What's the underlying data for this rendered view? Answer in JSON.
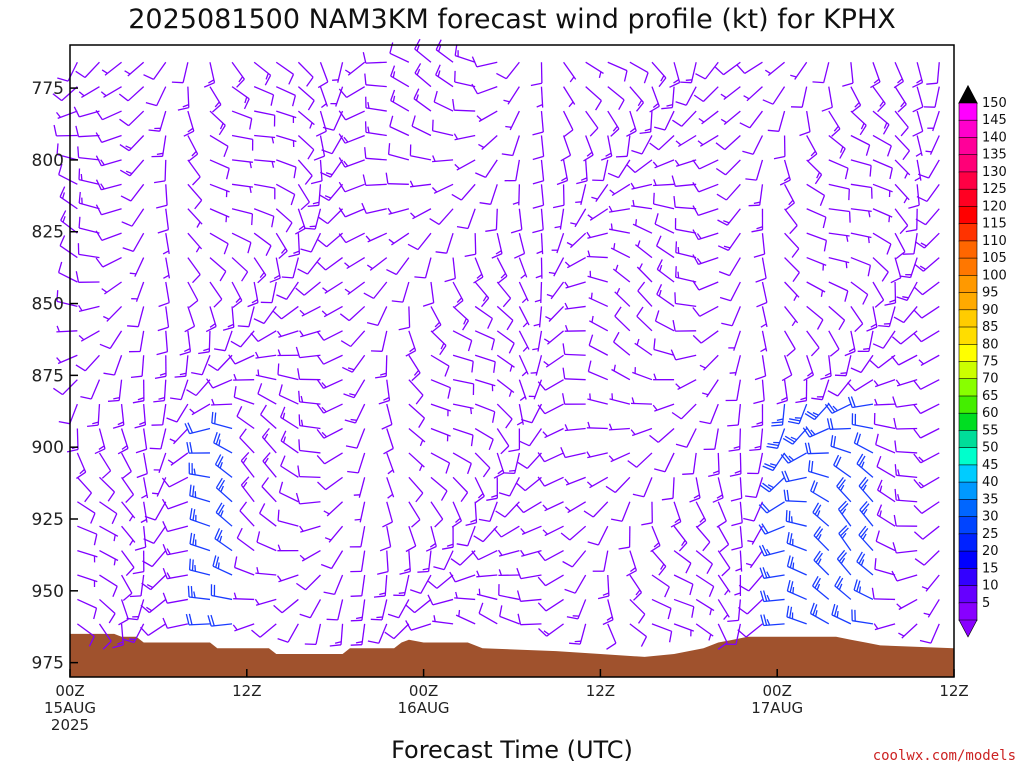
{
  "chart_data": {
    "type": "wind-barb-profile",
    "title": "2025081500 NAM3KM forecast wind profile (kt) for KPHX",
    "xlabel": "Forecast Time (UTC)",
    "ylabel": "",
    "units": "kt",
    "credit": "coolwx.com/models",
    "x_range_hours": [
      0,
      60
    ],
    "y_range_hpa": [
      760,
      980
    ],
    "y_ticks": [
      {
        "value": 775,
        "label": "775"
      },
      {
        "value": 800,
        "label": "800"
      },
      {
        "value": 825,
        "label": "825"
      },
      {
        "value": 850,
        "label": "850"
      },
      {
        "value": 875,
        "label": "875"
      },
      {
        "value": 900,
        "label": "900"
      },
      {
        "value": 925,
        "label": "925"
      },
      {
        "value": 950,
        "label": "950"
      },
      {
        "value": 975,
        "label": "975"
      }
    ],
    "x_ticks": [
      {
        "hour": 0,
        "lines": [
          "00Z",
          "15AUG",
          "2025"
        ]
      },
      {
        "hour": 12,
        "lines": [
          "12Z"
        ]
      },
      {
        "hour": 24,
        "lines": [
          "00Z",
          "16AUG"
        ]
      },
      {
        "hour": 36,
        "lines": [
          "12Z"
        ]
      },
      {
        "hour": 48,
        "lines": [
          "00Z",
          "17AUG"
        ]
      },
      {
        "hour": 60,
        "lines": [
          "12Z"
        ]
      }
    ],
    "colorbar": {
      "labels": [
        "150",
        "145",
        "140",
        "135",
        "130",
        "125",
        "120",
        "115",
        "110",
        "105",
        "100",
        "95",
        "90",
        "85",
        "80",
        "75",
        "70",
        "65",
        "60",
        "55",
        "50",
        "45",
        "40",
        "35",
        "30",
        "25",
        "20",
        "15",
        "10",
        "5"
      ],
      "colors": [
        "#ff00ff",
        "#ff00cc",
        "#ff0099",
        "#ff0077",
        "#ff0044",
        "#ff0022",
        "#ff0000",
        "#ff3300",
        "#ff6600",
        "#ff7700",
        "#ff9900",
        "#ffaa00",
        "#ffcc00",
        "#ffdd00",
        "#ffff00",
        "#ccff00",
        "#88ff00",
        "#44ee00",
        "#00dd22",
        "#00dd99",
        "#00ffcc",
        "#00ccff",
        "#0099ff",
        "#0066ff",
        "#0044ff",
        "#0022ff",
        "#0000ff",
        "#3300ff",
        "#6600ff",
        "#8800ff"
      ]
    },
    "terrain_color": "#a0522d",
    "terrain_hpa": [
      [
        0,
        965
      ],
      [
        3,
        965
      ],
      [
        3.5,
        966
      ],
      [
        4.5,
        966
      ],
      [
        5,
        968
      ],
      [
        9.5,
        968
      ],
      [
        10,
        970
      ],
      [
        13.5,
        970
      ],
      [
        14,
        972
      ],
      [
        18.5,
        972
      ],
      [
        19,
        970
      ],
      [
        22,
        970
      ],
      [
        22.5,
        968
      ],
      [
        23,
        967
      ],
      [
        24,
        968
      ],
      [
        27,
        968
      ],
      [
        28,
        970
      ],
      [
        33,
        971
      ],
      [
        36,
        972
      ],
      [
        39,
        973
      ],
      [
        41,
        972
      ],
      [
        42,
        971
      ],
      [
        43,
        970
      ],
      [
        44,
        968
      ],
      [
        45,
        967
      ],
      [
        46,
        966
      ],
      [
        48,
        966
      ],
      [
        52,
        966
      ],
      [
        53,
        967
      ],
      [
        54,
        968
      ],
      [
        55,
        969
      ],
      [
        60,
        970
      ]
    ],
    "barb_color": "#8000ff",
    "barb_color_strong": "#1a3cff",
    "barb_color_max": "#1a7aff"
  }
}
